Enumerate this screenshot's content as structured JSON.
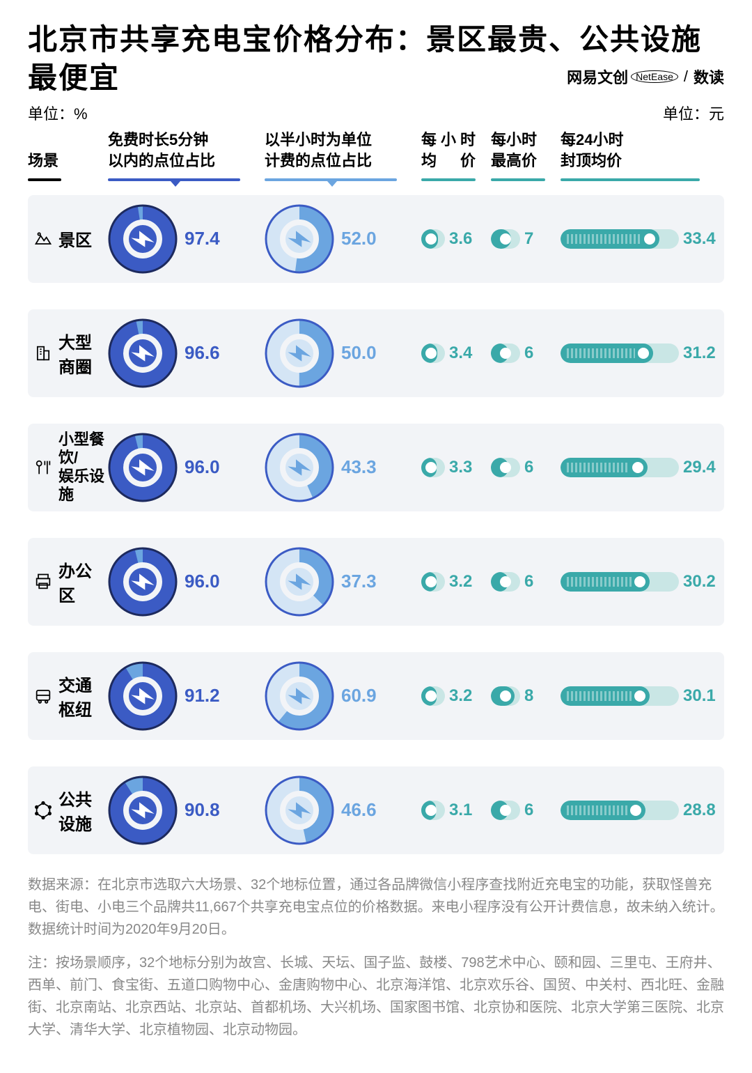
{
  "title": "北京市共享充电宝价格分布：景区最贵、公共设施最便宜",
  "brand": {
    "left": "网易文创",
    "ellipse": "NetEase",
    "right": "数读"
  },
  "unit_left": "单位：%",
  "unit_right": "单位：元",
  "headers": {
    "scene": "场景",
    "c1": "免费时长5分钟\n以内的点位占比",
    "c2": "以半小时为单位\n计费的点位占比",
    "c3": "每小时均　价",
    "c4": "每小时最高价",
    "c5": "每24小时封顶均价"
  },
  "colors": {
    "row_bg": "#f2f4f7",
    "donut1_fill": "#3b5bc4",
    "donut1_rest": "#6ba5e0",
    "donut1_ring": "#1d2a5e",
    "donut2_fill": "#6ba5e0",
    "donut2_rest": "#d4e5f5",
    "donut2_ring": "#3b5bc4",
    "bolt_blue_bg": "#3b5bc4",
    "bolt_light_bg": "#d4e5f5",
    "pill_track": "#c9e6e5",
    "pill_fill": "#3aa9a9"
  },
  "scales": {
    "donut_max": 100,
    "hourly_avg_max": 5,
    "hourly_max_max": 10,
    "daily_cap_max": 40,
    "pill1_track": 34,
    "pill2_track": 42,
    "pill3_track": 170
  },
  "rows": [
    {
      "name": "景区",
      "icon": "mountain",
      "d1": 97.4,
      "d2": 52.0,
      "avg": 3.6,
      "max": 7,
      "cap": 33.4
    },
    {
      "name": "大型商圈",
      "icon": "building",
      "d1": 96.6,
      "d2": 50.0,
      "avg": 3.4,
      "max": 6,
      "cap": 31.2
    },
    {
      "name": "小型餐饮/\n娱乐设施",
      "icon": "fork",
      "two": true,
      "d1": 96.0,
      "d2": 43.3,
      "avg": 3.3,
      "max": 6,
      "cap": 29.4
    },
    {
      "name": "办公区",
      "icon": "printer",
      "d1": 96.0,
      "d2": 37.3,
      "avg": 3.2,
      "max": 6,
      "cap": 30.2
    },
    {
      "name": "交通枢纽",
      "icon": "bus",
      "d1": 91.2,
      "d2": 60.9,
      "avg": 3.2,
      "max": 8,
      "cap": 30.1
    },
    {
      "name": "公共设施",
      "icon": "hex",
      "d1": 90.8,
      "d2": 46.6,
      "avg": 3.1,
      "max": 6,
      "cap": 28.8
    }
  ],
  "notes": {
    "p1": "数据来源：在北京市选取六大场景、32个地标位置，通过各品牌微信小程序查找附近充电宝的功能，获取怪兽充电、街电、小电三个品牌共11,667个共享充电宝点位的价格数据。来电小程序没有公开计费信息，故未纳入统计。数据统计时间为2020年9月20日。",
    "p2": "注：按场景顺序，32个地标分别为故宫、长城、天坛、国子监、鼓楼、798艺术中心、颐和园、三里屯、王府井、西单、前门、食宝街、五道口购物中心、金唐购物中心、北京海洋馆、北京欢乐谷、国贸、中关村、西北旺、金融街、北京南站、北京西站、北京站、首都机场、大兴机场、国家图书馆、北京协和医院、北京大学第三医院、北京大学、清华大学、北京植物园、北京动物园。"
  }
}
